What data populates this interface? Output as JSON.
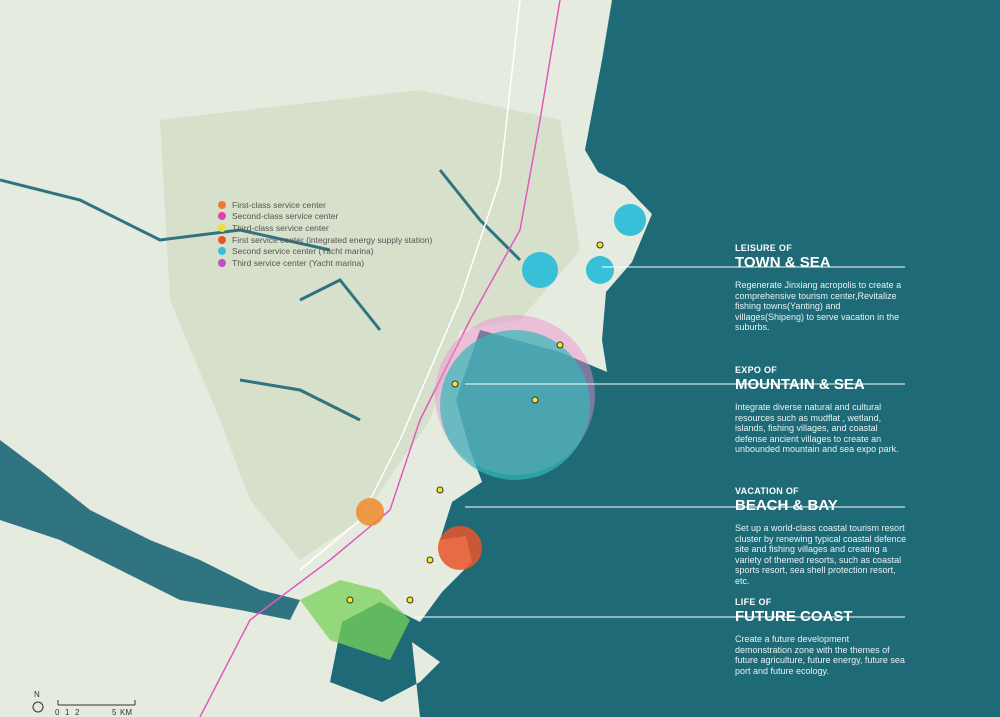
{
  "legend": {
    "items": [
      "First-class service center",
      "Second-class service center",
      "Third-class service center",
      "First service center (integrated energy supply station)",
      "Second service center (Yacht marina)",
      "Third service center (Yacht marina)"
    ]
  },
  "callouts": [
    {
      "kicker": "LEISURE OF",
      "title": "TOWN & SEA",
      "text": "Regenerate Jinxiang acropolis to create a comprehensive tourism center,Revitalize fishing towns(Yanting) and villages(Shipeng) to serve vacation in the suburbs."
    },
    {
      "kicker": "EXPO OF",
      "title": "MOUNTAIN & SEA",
      "text": "Integrate diverse natural and cultural resources such as mudflat , wetland, islands, fishing villages, and coastal defense ancient villages to create an unbounded mountain and sea expo park."
    },
    {
      "kicker": "VACATION OF",
      "title": "BEACH & BAY",
      "text": "Set up a world-class coastal tourism resort cluster by renewing typical coastal defence site and fishing villages and creating a variety of themed resorts, such as coastal sports resort, sea shell protection resort, etc."
    },
    {
      "kicker": "LIFE OF",
      "title": "FUTURE COAST",
      "text": "Create a future development demonstration zone with the themes of future agriculture, future energy, future sea port and future ecology."
    }
  ],
  "scale": {
    "north": "N",
    "labels": [
      "0",
      "1",
      "2",
      "5"
    ],
    "unit": "KM"
  }
}
